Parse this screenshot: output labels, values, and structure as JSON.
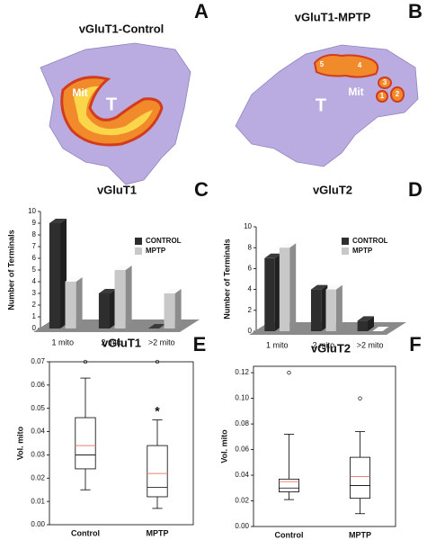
{
  "chart_data": [
    {
      "type": "bar",
      "panel_label": "C",
      "title": "vGluT1",
      "ylabel": "Number of Terminals",
      "categories": [
        "1 mito",
        "2 mito",
        ">2 mito"
      ],
      "series": [
        {
          "name": "CONTROL",
          "color": "#2e2e2e",
          "values": [
            9,
            3,
            0
          ]
        },
        {
          "name": "MPTP",
          "color": "#c8c8c8",
          "values": [
            4,
            5,
            3
          ]
        }
      ],
      "ylim": [
        0,
        10
      ],
      "yticks": [
        0,
        1,
        2,
        3,
        4,
        5,
        6,
        7,
        8,
        9,
        10
      ]
    },
    {
      "type": "bar",
      "panel_label": "D",
      "title": "vGluT2",
      "ylabel": "Number of Terminals",
      "categories": [
        "1 mito",
        "2 mito",
        ">2 mito"
      ],
      "series": [
        {
          "name": "CONTROL",
          "color": "#2e2e2e",
          "values": [
            7,
            4,
            1
          ]
        },
        {
          "name": "MPTP",
          "color": "#c8c8c8",
          "values": [
            8,
            4,
            0
          ]
        }
      ],
      "ylim": [
        0,
        10
      ],
      "yticks": [
        0,
        2,
        4,
        6,
        8,
        10
      ]
    },
    {
      "type": "box",
      "panel_label": "E",
      "title": "vGluT1",
      "ylabel": "Vol. mito",
      "mean_color": "#ee7d75",
      "boxes": [
        {
          "name": "Control",
          "whislo": 0.015,
          "q1": 0.024,
          "med": 0.03,
          "mean": 0.034,
          "q3": 0.046,
          "whishi": 0.063,
          "fliers": [
            0.07
          ]
        },
        {
          "name": "MPTP",
          "whislo": 0.007,
          "q1": 0.012,
          "med": 0.016,
          "mean": 0.022,
          "q3": 0.034,
          "whishi": 0.045,
          "fliers": [
            0.07
          ]
        }
      ],
      "annotations": [
        {
          "text": "*",
          "category": "MPTP"
        }
      ],
      "ylim": [
        0,
        0.07
      ],
      "yticks": [
        {
          "value": 0,
          "label": "0.00"
        },
        0.01,
        0.02,
        0.03,
        0.04,
        0.05,
        0.06,
        0.07
      ]
    },
    {
      "type": "box",
      "panel_label": "F",
      "title": "vGluT2",
      "ylabel": "Vol. mito",
      "mean_color": "#ee7d75",
      "boxes": [
        {
          "name": "Control",
          "whislo": 0.021,
          "q1": 0.027,
          "med": 0.03,
          "mean": 0.035,
          "q3": 0.037,
          "whishi": 0.072,
          "fliers": [
            0.12
          ]
        },
        {
          "name": "MPTP",
          "whislo": 0.01,
          "q1": 0.022,
          "med": 0.032,
          "mean": 0.039,
          "q3": 0.054,
          "whishi": 0.074,
          "fliers": [
            0.1
          ]
        }
      ],
      "annotations": [],
      "ylim": [
        0,
        0.125
      ],
      "yticks": [
        {
          "value": 0,
          "label": "0.00"
        },
        0.02,
        0.04,
        0.06,
        0.08,
        {
          "value": 0.1,
          "label": "0.10"
        },
        0.12
      ]
    }
  ],
  "images": [
    {
      "panel_label": "A",
      "title": "vGluT1-Control",
      "labels": [
        "Mit",
        "T"
      ]
    },
    {
      "panel_label": "B",
      "title": "vGluT1-MPTP",
      "labels": [
        "5",
        "4",
        "Mit",
        "3",
        "1",
        "2",
        "T"
      ]
    }
  ]
}
